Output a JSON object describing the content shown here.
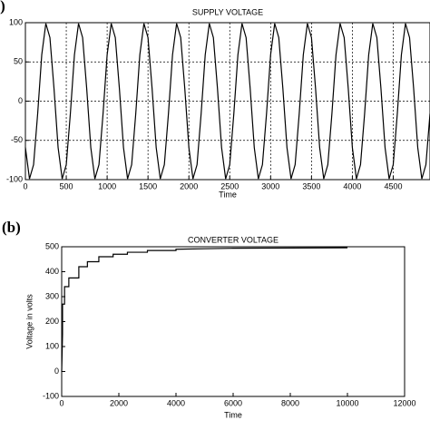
{
  "chart_data": [
    {
      "type": "line",
      "panel": "(a)",
      "title": "SUPPLY VOLTAGE",
      "x_label": "Time",
      "x": [
        0,
        50,
        100,
        150,
        200,
        250,
        300,
        350,
        400,
        450,
        500,
        550,
        600,
        650,
        700,
        750,
        800,
        850,
        900,
        950,
        1000,
        1050,
        1100,
        1150,
        1200,
        1250,
        1300,
        1350,
        1400,
        1450,
        1500,
        1550,
        1600,
        1650,
        1700,
        1750,
        1800,
        1850,
        1900,
        1950,
        2000,
        2050,
        2100,
        2150,
        2200,
        2250,
        2300,
        2350,
        2400,
        2450,
        2500,
        2550,
        2600,
        2650,
        2700,
        2750,
        2800,
        2850,
        2900,
        2950,
        3000,
        3050,
        3100,
        3150,
        3200,
        3250,
        3300,
        3350,
        3400,
        3450,
        3500,
        3550,
        3600,
        3650,
        3700,
        3750,
        3800,
        3850,
        3900,
        3950,
        4000,
        4050,
        4100,
        4150,
        4200,
        4250,
        4300,
        4350,
        4400,
        4450,
        4500,
        4550,
        4600,
        4650,
        4700,
        4750,
        4800,
        4850,
        4900,
        4950
      ],
      "series": [
        {
          "color": "#000000",
          "values": [
            -59,
            -99,
            -81,
            -16,
            59,
            99,
            81,
            16,
            -59,
            -99,
            -81,
            -16,
            59,
            99,
            81,
            16,
            -59,
            -99,
            -81,
            -16,
            59,
            99,
            81,
            16,
            -59,
            -99,
            -81,
            -16,
            59,
            99,
            81,
            16,
            -59,
            -99,
            -81,
            -16,
            59,
            99,
            81,
            16,
            -59,
            -99,
            -81,
            -16,
            59,
            99,
            81,
            16,
            -59,
            -99,
            -81,
            -16,
            59,
            99,
            81,
            16,
            -59,
            -99,
            -81,
            -16,
            59,
            99,
            81,
            16,
            -59,
            -99,
            -81,
            -16,
            59,
            99,
            81,
            16,
            -59,
            -99,
            -81,
            -16,
            59,
            99,
            81,
            16,
            -59,
            -99,
            -81,
            -16,
            59,
            99,
            81,
            16,
            -59,
            -99,
            -81,
            -16,
            59,
            99,
            81,
            16,
            -59,
            -99,
            -81,
            -16
          ]
        }
      ],
      "xlim": [
        0,
        4950
      ],
      "xticks": [
        0,
        500,
        1000,
        1500,
        2000,
        2500,
        3000,
        3500,
        4000,
        4500
      ],
      "ylim": [
        -100,
        100
      ],
      "yticks": [
        -100,
        -50,
        0,
        50,
        100
      ],
      "grid": true
    },
    {
      "type": "line",
      "panel": "(b)",
      "title": "CONVERTER VOLTAGE",
      "x_label": "Time",
      "y_label": "Voltage in volts",
      "x": [
        0,
        30,
        30,
        100,
        100,
        250,
        250,
        600,
        600,
        900,
        900,
        1300,
        1300,
        1800,
        1800,
        2300,
        2300,
        3000,
        3000,
        4000,
        4000,
        5000,
        6000,
        8000,
        10000
      ],
      "series": [
        {
          "color": "#000000",
          "values": [
            0,
            150,
            270,
            270,
            340,
            340,
            375,
            375,
            420,
            420,
            440,
            440,
            460,
            460,
            470,
            470,
            478,
            478,
            485,
            485,
            490,
            492,
            494,
            495,
            496
          ]
        }
      ],
      "xlim": [
        0,
        12000
      ],
      "xticks": [
        0,
        2000,
        4000,
        6000,
        8000,
        10000,
        12000
      ],
      "ylim": [
        -100,
        500
      ],
      "yticks": [
        -100,
        0,
        100,
        200,
        300,
        400,
        500
      ],
      "grid": false
    }
  ]
}
